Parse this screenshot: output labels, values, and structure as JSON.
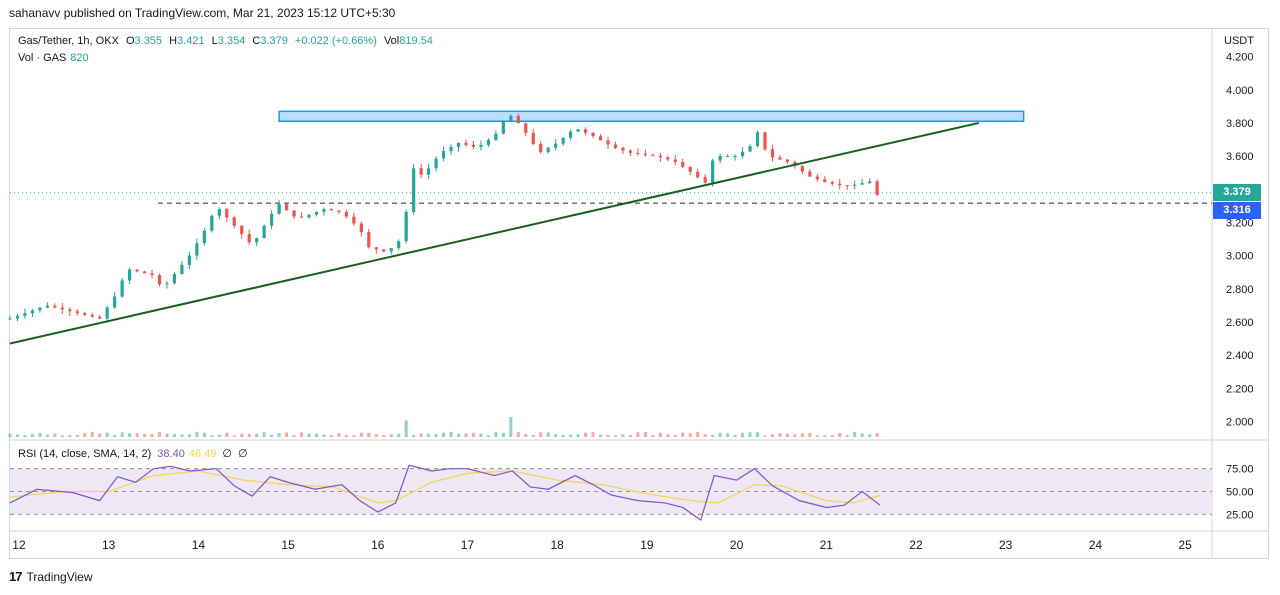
{
  "header": {
    "publisher_line": "sahanavv published on TradingView.com, Mar 21, 2023 15:12 UTC+5:30"
  },
  "legend": {
    "symbol": "Gas/Tether, 1h, OKX",
    "open_label": "O",
    "open": "3.355",
    "high_label": "H",
    "high": "3.421",
    "low_label": "L",
    "low": "3.354",
    "close_label": "C",
    "close": "3.379",
    "change": "+0.022 (+0.66%)",
    "vol_label": "Vol",
    "vol": "819.54",
    "vol_series_label": "Vol · GAS",
    "vol_series_value": "820"
  },
  "rsi_legend": {
    "label": "RSI (14, close, SMA, 14, 2)",
    "rsi_value": "38.40",
    "sma_value": "46.49",
    "z1": "∅",
    "z2": "∅"
  },
  "price_axis": {
    "title": "USDT",
    "ticks": [
      "4.200",
      "4.000",
      "3.800",
      "3.600",
      "3.400",
      "3.200",
      "3.000",
      "2.800",
      "2.600",
      "2.400",
      "2.200",
      "2.000"
    ]
  },
  "rsi_axis": {
    "ticks": [
      "75.00",
      "50.00",
      "25.00"
    ]
  },
  "badges": {
    "last_price": "3.379",
    "level_price": "3.316"
  },
  "colors": {
    "up": "#26a69a",
    "down": "#ef5350",
    "trendline": "#1b5e20",
    "zone_fill": "#bbdefb",
    "zone_border": "#2196f3",
    "rsi_line": "#7e57c2",
    "rsi_sma": "#f5d650",
    "rsi_band": "#ede7f6",
    "level_badge": "#2962ff"
  },
  "footer": {
    "brand": "TradingView",
    "logo_glyph": "17"
  },
  "chart_data": {
    "type": "candlestick",
    "title": "Gas/Tether, 1h, OKX",
    "x_ticks": [
      "12",
      "13",
      "14",
      "15",
      "16",
      "17",
      "18",
      "19",
      "20",
      "21",
      "22",
      "23",
      "24",
      "25"
    ],
    "ylim": [
      1.9,
      4.3
    ],
    "y_ticks": [
      2.0,
      2.2,
      2.4,
      2.6,
      2.8,
      3.0,
      3.2,
      3.4,
      3.6,
      3.8,
      4.0,
      4.2
    ],
    "x_range_days": [
      11.9,
      25.3
    ],
    "price_path": [
      [
        11.9,
        2.62
      ],
      [
        12.3,
        2.7
      ],
      [
        12.6,
        2.66
      ],
      [
        12.9,
        2.62
      ],
      [
        13.1,
        2.78
      ],
      [
        13.2,
        2.92
      ],
      [
        13.5,
        2.88
      ],
      [
        13.6,
        2.8
      ],
      [
        13.9,
        3.0
      ],
      [
        14.1,
        3.18
      ],
      [
        14.2,
        3.3
      ],
      [
        14.4,
        3.18
      ],
      [
        14.6,
        3.06
      ],
      [
        14.8,
        3.24
      ],
      [
        14.9,
        3.31
      ],
      [
        15.1,
        3.22
      ],
      [
        15.4,
        3.28
      ],
      [
        15.6,
        3.26
      ],
      [
        15.8,
        3.16
      ],
      [
        15.9,
        3.05
      ],
      [
        16.1,
        3.02
      ],
      [
        16.3,
        3.12
      ],
      [
        16.35,
        3.55
      ],
      [
        16.5,
        3.48
      ],
      [
        16.7,
        3.62
      ],
      [
        16.9,
        3.68
      ],
      [
        17.1,
        3.65
      ],
      [
        17.3,
        3.72
      ],
      [
        17.45,
        3.86
      ],
      [
        17.6,
        3.78
      ],
      [
        17.8,
        3.62
      ],
      [
        18.0,
        3.68
      ],
      [
        18.2,
        3.77
      ],
      [
        18.4,
        3.72
      ],
      [
        18.6,
        3.66
      ],
      [
        18.8,
        3.62
      ],
      [
        19.1,
        3.6
      ],
      [
        19.3,
        3.57
      ],
      [
        19.5,
        3.5
      ],
      [
        19.65,
        3.44
      ],
      [
        19.75,
        3.6
      ],
      [
        20.0,
        3.6
      ],
      [
        20.15,
        3.66
      ],
      [
        20.22,
        3.76
      ],
      [
        20.35,
        3.6
      ],
      [
        20.6,
        3.56
      ],
      [
        20.8,
        3.48
      ],
      [
        21.0,
        3.44
      ],
      [
        21.2,
        3.42
      ],
      [
        21.35,
        3.43
      ],
      [
        21.5,
        3.45
      ],
      [
        21.55,
        3.36
      ],
      [
        21.6,
        3.379
      ]
    ],
    "volume": [
      [
        16.35,
        500
      ],
      [
        17.45,
        600
      ],
      [
        18.8,
        60
      ],
      [
        20.3,
        45
      ]
    ],
    "horizontal_level": 3.316,
    "resistance_zone": {
      "x_start": 14.9,
      "x_end": 23.2,
      "y_low": 3.81,
      "y_high": 3.87
    },
    "trendline": {
      "x_start": 11.9,
      "y_start": 2.47,
      "x_end": 22.7,
      "y_end": 3.8
    },
    "rsi": {
      "ylim": [
        18,
        82
      ],
      "bands": [
        30,
        70
      ],
      "rsi_path": [
        [
          11.9,
          40
        ],
        [
          12.2,
          52
        ],
        [
          12.6,
          49
        ],
        [
          12.9,
          42
        ],
        [
          13.1,
          63
        ],
        [
          13.3,
          58
        ],
        [
          13.5,
          70
        ],
        [
          13.7,
          72
        ],
        [
          13.9,
          68
        ],
        [
          14.2,
          70
        ],
        [
          14.4,
          55
        ],
        [
          14.6,
          46
        ],
        [
          14.8,
          63
        ],
        [
          15.0,
          58
        ],
        [
          15.3,
          52
        ],
        [
          15.6,
          56
        ],
        [
          15.8,
          42
        ],
        [
          16.0,
          32
        ],
        [
          16.2,
          40
        ],
        [
          16.35,
          73
        ],
        [
          16.6,
          68
        ],
        [
          16.8,
          70
        ],
        [
          17.0,
          70
        ],
        [
          17.3,
          64
        ],
        [
          17.5,
          68
        ],
        [
          17.7,
          54
        ],
        [
          17.9,
          52
        ],
        [
          18.2,
          64
        ],
        [
          18.4,
          56
        ],
        [
          18.6,
          47
        ],
        [
          18.9,
          42
        ],
        [
          19.2,
          40
        ],
        [
          19.4,
          36
        ],
        [
          19.6,
          25
        ],
        [
          19.75,
          64
        ],
        [
          20.0,
          60
        ],
        [
          20.2,
          70
        ],
        [
          20.4,
          55
        ],
        [
          20.7,
          42
        ],
        [
          21.0,
          36
        ],
        [
          21.2,
          38
        ],
        [
          21.4,
          50
        ],
        [
          21.6,
          38
        ]
      ],
      "sma_path": [
        [
          11.9,
          45
        ],
        [
          12.5,
          50
        ],
        [
          13.0,
          50
        ],
        [
          13.5,
          64
        ],
        [
          14.0,
          68
        ],
        [
          14.5,
          60
        ],
        [
          15.0,
          56
        ],
        [
          15.5,
          54
        ],
        [
          16.0,
          40
        ],
        [
          16.2,
          42
        ],
        [
          16.6,
          58
        ],
        [
          17.0,
          66
        ],
        [
          17.5,
          68
        ],
        [
          18.0,
          60
        ],
        [
          18.5,
          56
        ],
        [
          19.0,
          48
        ],
        [
          19.5,
          42
        ],
        [
          19.8,
          40
        ],
        [
          20.2,
          56
        ],
        [
          20.5,
          55
        ],
        [
          21.0,
          42
        ],
        [
          21.3,
          40
        ],
        [
          21.6,
          46.49
        ]
      ]
    }
  }
}
